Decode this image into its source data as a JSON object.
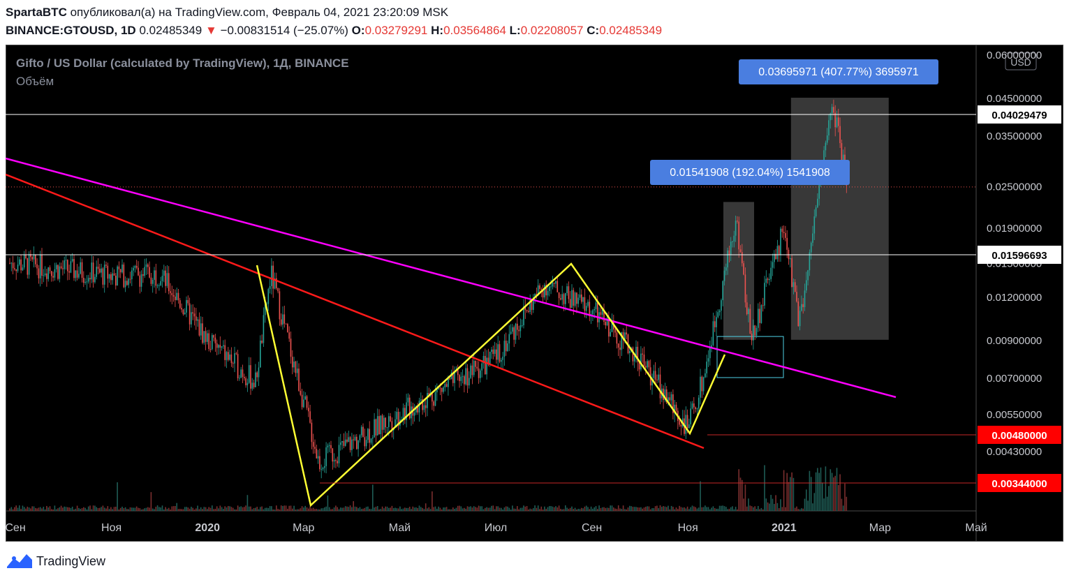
{
  "header": {
    "author": "SpartaBTC",
    "published_text": "опубликовал(а) на TradingView.com, Февраль 04, 2021 23:20:09 MSK",
    "symbol": "BINANCE:GTOUSD, 1D",
    "last": "0.02485349",
    "change_arrow": "▼",
    "change": "−0.00831514 (−25.07%)",
    "o_label": "O:",
    "o_value": "0.03279291",
    "h_label": "H:",
    "h_value": "0.03564864",
    "l_label": "L:",
    "l_value": "0.02208057",
    "c_label": "C:",
    "c_value": "0.02485349"
  },
  "legend": {
    "title": "Gifto / US Dollar (calculated by TradingView), 1Д, BINANCE",
    "volume": "Объём",
    "currency_button": "USD"
  },
  "colors": {
    "background": "#000000",
    "up": "#26a69a",
    "down": "#ef5350",
    "magenta_line": "#ff00ff",
    "red_line": "#ff1a1a",
    "yellow_line": "#ffff33",
    "label_blue": "#4a7ee0",
    "price_tag_red": "#ff0000"
  },
  "chart_data": {
    "type": "candlestick",
    "y_scale": "log",
    "y_ticks": [
      "0.06000000",
      "0.04500000",
      "0.03500000",
      "0.02500000",
      "0.01900000",
      "0.01500000",
      "0.01200000",
      "0.00900000",
      "0.00700000",
      "0.00550000",
      "0.00430000"
    ],
    "x_ticks": [
      "Сен",
      "Ноя",
      "2020",
      "Мар",
      "Май",
      "Июл",
      "Сен",
      "Ноя",
      "2021",
      "Мар",
      "Май"
    ],
    "bold_x_ticks": [
      "2020",
      "2021"
    ],
    "price_tags": [
      {
        "value": "0.04029479",
        "style": "white"
      },
      {
        "value": "0.01596693",
        "style": "white"
      },
      {
        "value": "0.00480000",
        "style": "red"
      },
      {
        "value": "0.00344000",
        "style": "red"
      }
    ],
    "measure_labels": [
      {
        "text": "0.01541908 (192.04%) 1541908"
      },
      {
        "text": "0.03695971 (407.77%) 3695971"
      }
    ],
    "price_path": [
      [
        "Сен 2019",
        0.015
      ],
      [
        "Ноя 2019",
        0.0138
      ],
      [
        "Дек 2019",
        0.014
      ],
      [
        "2020",
        0.009
      ],
      [
        "Фев 2020",
        0.0068
      ],
      [
        "Фев 2020",
        0.014
      ],
      [
        "Мар 2020",
        0.006
      ],
      [
        "Мар 2020",
        0.004
      ],
      [
        "Май 2020",
        0.0055
      ],
      [
        "Июл 2020",
        0.008
      ],
      [
        "Авг 2020",
        0.013
      ],
      [
        "Сен 2020",
        0.011
      ],
      [
        "Окт 2020",
        0.008
      ],
      [
        "Ноя 2020",
        0.005
      ],
      [
        "Ноя 2020",
        0.007
      ],
      [
        "Дек 2020",
        0.02
      ],
      [
        "Дек 2020",
        0.009
      ],
      [
        "2021",
        0.019
      ],
      [
        "Янв 2021",
        0.01
      ],
      [
        "Фев 2021",
        0.045
      ],
      [
        "Фев 2021",
        0.0249
      ]
    ]
  },
  "footer": {
    "brand": "TradingView"
  }
}
